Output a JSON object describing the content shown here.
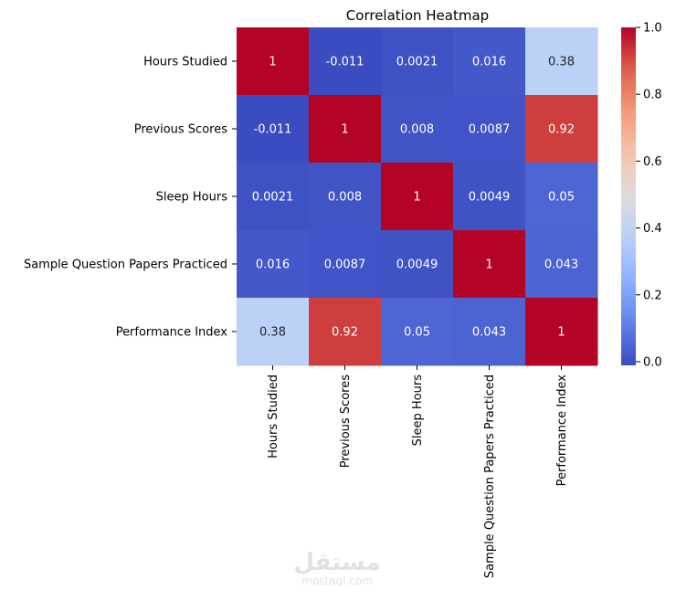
{
  "chart_data": {
    "type": "heatmap",
    "title": "Correlation Heatmap",
    "rows": [
      "Hours Studied",
      "Previous Scores",
      "Sleep Hours",
      "Sample Question Papers Practiced",
      "Performance Index"
    ],
    "columns": [
      "Hours Studied",
      "Previous Scores",
      "Sleep Hours",
      "Sample Question Papers Practiced",
      "Performance Index"
    ],
    "values": [
      [
        1,
        -0.011,
        0.0021,
        0.016,
        0.38
      ],
      [
        -0.011,
        1,
        0.008,
        0.0087,
        0.92
      ],
      [
        0.0021,
        0.008,
        1,
        0.0049,
        0.05
      ],
      [
        0.016,
        0.0087,
        0.0049,
        1,
        0.043
      ],
      [
        0.38,
        0.92,
        0.05,
        0.043,
        1
      ]
    ],
    "cell_labels": [
      [
        "1",
        "-0.011",
        "0.0021",
        "0.016",
        "0.38"
      ],
      [
        "-0.011",
        "1",
        "0.008",
        "0.0087",
        "0.92"
      ],
      [
        "0.0021",
        "0.008",
        "1",
        "0.0049",
        "0.05"
      ],
      [
        "0.016",
        "0.0087",
        "0.0049",
        "1",
        "0.043"
      ],
      [
        "0.38",
        "0.92",
        "0.05",
        "0.043",
        "1"
      ]
    ],
    "colormap": "coolwarm",
    "vmin": -0.011,
    "vmax": 1,
    "colorbar_ticks": [
      0.0,
      0.2,
      0.4,
      0.6,
      0.8,
      1.0
    ],
    "colorbar_tick_labels": [
      "0.0",
      "0.2",
      "0.4",
      "0.6",
      "0.8",
      "1.0"
    ]
  },
  "watermark": {
    "arabic": "مستقل",
    "latin": "mostaql.com"
  }
}
